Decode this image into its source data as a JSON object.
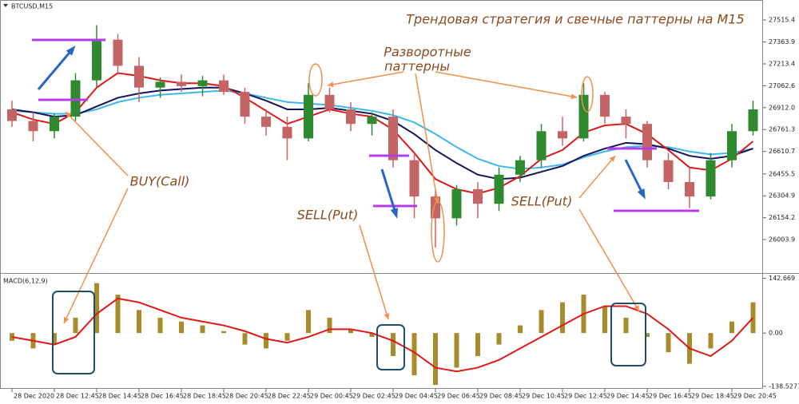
{
  "chart_data": [
    {
      "type": "candlestick",
      "symbol": "BTCUSD,M15",
      "title": "Трендовая стратегия и свечные паттерны на M15",
      "annotations": [
        "Разворотные",
        "паттерны",
        "BUY(Call)",
        "SELL(Put)",
        "SELL(Put)"
      ],
      "up_color": "#2f8a2f",
      "down_color": "#c46464",
      "open": [
        26900,
        26820,
        26750,
        26850,
        27100,
        27380,
        27200,
        27050,
        27090,
        27060,
        27100,
        27020,
        26850,
        26780,
        26700,
        27000,
        26900,
        26800,
        26850,
        26550,
        26300,
        26150,
        26350,
        26250,
        26450,
        26550,
        26750,
        26700,
        27000,
        26850,
        26800,
        26550,
        26400,
        26300,
        26550,
        26750
      ],
      "high": [
        26960,
        26880,
        26870,
        27150,
        27480,
        27420,
        27260,
        27120,
        27140,
        27130,
        27140,
        27050,
        26900,
        26850,
        27080,
        27050,
        26950,
        26880,
        26900,
        26600,
        26350,
        26380,
        26400,
        26500,
        26580,
        26800,
        26850,
        27080,
        27020,
        26900,
        26820,
        26600,
        26500,
        26600,
        26800,
        26960
      ],
      "low": [
        26780,
        26680,
        26700,
        26820,
        27050,
        27150,
        26950,
        26980,
        27020,
        26990,
        27000,
        26800,
        26720,
        26550,
        26680,
        26880,
        26750,
        26720,
        26500,
        26150,
        25950,
        26100,
        26150,
        26200,
        26400,
        26500,
        26650,
        26680,
        26800,
        26700,
        26500,
        26350,
        26220,
        26280,
        26500,
        26720
      ],
      "close": [
        26820,
        26750,
        26850,
        27100,
        27380,
        27200,
        27050,
        27090,
        27060,
        27100,
        27020,
        26850,
        26780,
        26700,
        27000,
        26900,
        26800,
        26850,
        26550,
        26300,
        26150,
        26350,
        26250,
        26450,
        26550,
        26750,
        26700,
        27000,
        26850,
        26800,
        26550,
        26400,
        26300,
        26550,
        26750,
        26900
      ],
      "series": [
        {
          "color": "#e01818",
          "values": [
            26880,
            26830,
            26800,
            26880,
            27050,
            27150,
            27130,
            27100,
            27080,
            27080,
            27060,
            26980,
            26890,
            26800,
            26850,
            26900,
            26870,
            26850,
            26760,
            26600,
            26420,
            26350,
            26320,
            26360,
            26440,
            26560,
            26620,
            26740,
            26790,
            26800,
            26730,
            26620,
            26500,
            26480,
            26560,
            26680
          ]
        },
        {
          "color": "#14145a",
          "values": [
            26900,
            26880,
            26850,
            26860,
            26920,
            26980,
            27010,
            27030,
            27040,
            27050,
            27050,
            27010,
            26960,
            26900,
            26900,
            26910,
            26890,
            26870,
            26820,
            26730,
            26620,
            26530,
            26450,
            26420,
            26430,
            26470,
            26510,
            26580,
            26630,
            26670,
            26660,
            26630,
            26580,
            26560,
            26580,
            26630
          ]
        },
        {
          "color": "#3cb8ec",
          "values": [
            26890,
            26880,
            26870,
            26870,
            26900,
            26950,
            26980,
            27000,
            27010,
            27020,
            27030,
            27010,
            26980,
            26950,
            26940,
            26930,
            26910,
            26890,
            26860,
            26810,
            26730,
            26640,
            26560,
            26510,
            26490,
            26500,
            26520,
            26570,
            26610,
            26640,
            26650,
            26640,
            26610,
            26590,
            26600,
            26630
          ]
        }
      ],
      "ylim": [
        25784,
        27642
      ],
      "yticks": [
        27515.4,
        27363.9,
        27213.4,
        27062.6,
        {
          "value": 26912.0,
          "label": "26912.0"
        },
        26761.3,
        26610.7,
        26455.5,
        26304.9,
        26154.2,
        26003.9
      ]
    },
    {
      "type": "macd",
      "title": "MACD(6,12,9)",
      "categories": [
        "28 Dec 2020",
        null,
        "28 Dec 12:45",
        null,
        "28 Dec 14:45",
        null,
        "28 Dec 16:45",
        null,
        "28 Dec 18:45",
        null,
        "28 Dec 20:45",
        null,
        "28 Dec 22:45",
        null,
        "29 Dec 00:45",
        null,
        "29 Dec 02:45",
        null,
        "29 Dec 04:45",
        null,
        "29 Dec 06:45",
        null,
        "29 Dec 08:45",
        null,
        "29 Dec 10:45",
        null,
        "29 Dec 12:45",
        null,
        "29 Dec 14:45",
        null,
        "29 Dec 16:45",
        null,
        "29 Dec 18:45",
        null,
        "29 Dec 20:45",
        null
      ],
      "series": [
        {
          "color": "#a88b2a",
          "values": [
            -20,
            -40,
            -30,
            40,
            130,
            100,
            60,
            40,
            30,
            20,
            5,
            -30,
            -40,
            -20,
            60,
            40,
            10,
            -10,
            -60,
            -110,
            -135,
            -90,
            -60,
            -30,
            20,
            60,
            80,
            100,
            70,
            40,
            -10,
            -50,
            -80,
            -40,
            30,
            80
          ]
        },
        {
          "color": "#e01818",
          "values": [
            -10,
            -20,
            -30,
            -10,
            50,
            90,
            80,
            60,
            40,
            30,
            20,
            5,
            -15,
            -25,
            -10,
            10,
            10,
            0,
            -20,
            -50,
            -90,
            -100,
            -90,
            -70,
            -40,
            -10,
            20,
            50,
            70,
            70,
            50,
            10,
            -40,
            -60,
            -20,
            40
          ]
        }
      ],
      "ylim": [
        -141,
        150
      ],
      "yticks": [
        142.669,
        {
          "value": 0,
          "label": "0.00"
        },
        -138.5277
      ]
    }
  ]
}
